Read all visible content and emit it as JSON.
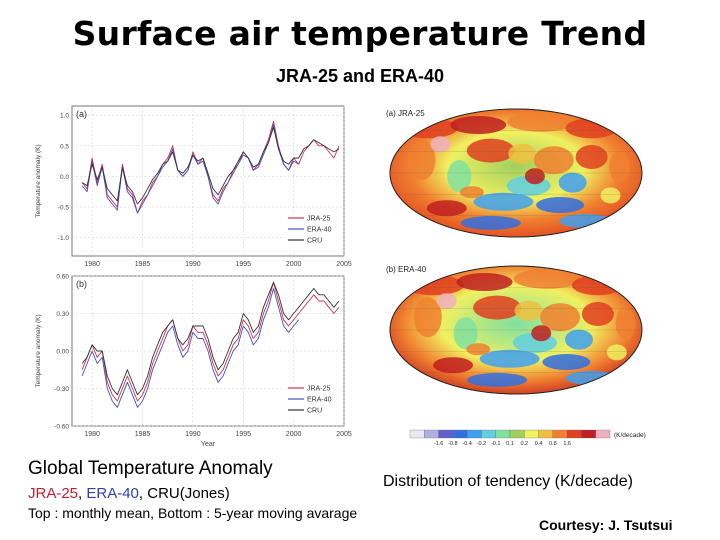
{
  "header": {
    "title": "Surface air temperature Trend",
    "subtitle": "JRA-25 and ERA-40"
  },
  "chart_data": [
    {
      "type": "line",
      "panel_label": "(a)",
      "ylabel": "Temperature anomaly (K)",
      "xlim": [
        1978,
        2005
      ],
      "ylim": [
        -1.3,
        1.15
      ],
      "xticks": [
        1980,
        1985,
        1990,
        1995,
        2000,
        2005
      ],
      "yticks": [
        "1.0",
        "0.5",
        "0.0",
        "-0.5",
        "-1.0"
      ],
      "ytick_values": [
        1.0,
        0.5,
        0.0,
        -0.5,
        -1.0
      ],
      "legend": {
        "placement": "bottom-right",
        "entries": [
          "JRA-25",
          "ERA-40",
          "CRU"
        ]
      },
      "x": [
        1979.0,
        1979.5,
        1980.0,
        1980.5,
        1981.0,
        1981.5,
        1982.0,
        1982.5,
        1983.0,
        1983.5,
        1984.0,
        1984.5,
        1985.0,
        1985.5,
        1986.0,
        1986.5,
        1987.0,
        1987.5,
        1988.0,
        1988.5,
        1989.0,
        1989.5,
        1990.0,
        1990.5,
        1991.0,
        1991.5,
        1992.0,
        1992.5,
        1993.0,
        1993.5,
        1994.0,
        1994.5,
        1995.0,
        1995.5,
        1996.0,
        1996.5,
        1997.0,
        1997.5,
        1998.0,
        1998.5,
        1999.0,
        1999.5,
        2000.0,
        2000.5,
        2001.0,
        2001.5,
        2002.0,
        2002.5,
        2003.0,
        2003.5,
        2004.0,
        2004.5
      ],
      "series": [
        {
          "name": "JRA-25",
          "color": "#d03050",
          "values": [
            -0.1,
            -0.2,
            0.3,
            -0.1,
            0.2,
            -0.3,
            -0.4,
            -0.5,
            0.2,
            -0.2,
            -0.3,
            -0.6,
            -0.4,
            -0.3,
            -0.1,
            0.0,
            0.2,
            0.3,
            0.5,
            0.1,
            0.0,
            0.1,
            0.4,
            0.2,
            0.3,
            0.0,
            -0.3,
            -0.4,
            -0.2,
            -0.1,
            0.1,
            0.2,
            0.4,
            0.3,
            0.1,
            0.2,
            0.4,
            0.6,
            0.9,
            0.5,
            0.2,
            0.1,
            0.3,
            0.2,
            0.4,
            0.5,
            0.6,
            0.5,
            0.5,
            0.4,
            0.3,
            0.5
          ]
        },
        {
          "name": "ERA-40",
          "color": "#4050c0",
          "values": [
            -0.15,
            -0.25,
            0.25,
            -0.15,
            0.15,
            -0.35,
            -0.45,
            -0.55,
            0.15,
            -0.25,
            -0.35,
            -0.6,
            -0.45,
            -0.3,
            -0.15,
            0.0,
            0.15,
            0.25,
            0.45,
            0.1,
            0.0,
            0.1,
            0.35,
            0.2,
            0.25,
            0.0,
            -0.35,
            -0.45,
            -0.25,
            -0.1,
            0.05,
            0.2,
            0.35,
            0.3,
            0.1,
            0.15,
            0.35,
            0.55,
            0.85,
            0.45,
            0.2,
            0.1,
            0.25,
            0.2,
            null,
            null,
            null,
            null,
            null,
            null,
            null,
            null
          ]
        },
        {
          "name": "CRU",
          "color": "#333333",
          "values": [
            -0.1,
            -0.15,
            0.2,
            -0.05,
            0.15,
            -0.2,
            -0.3,
            -0.4,
            0.15,
            -0.15,
            -0.25,
            -0.45,
            -0.35,
            -0.2,
            -0.05,
            0.05,
            0.2,
            0.25,
            0.4,
            0.1,
            0.05,
            0.15,
            0.35,
            0.25,
            0.3,
            0.05,
            -0.2,
            -0.3,
            -0.15,
            0.0,
            0.1,
            0.25,
            0.4,
            0.3,
            0.15,
            0.2,
            0.4,
            0.55,
            0.8,
            0.45,
            0.25,
            0.2,
            0.3,
            0.3,
            0.45,
            0.5,
            0.6,
            0.55,
            0.5,
            0.45,
            0.4,
            0.45
          ]
        }
      ]
    },
    {
      "type": "line",
      "panel_label": "(b)",
      "ylabel": "Temperature anomaly (K)",
      "xlabel": "Year",
      "xlim": [
        1978,
        2005
      ],
      "ylim": [
        -0.6,
        0.6
      ],
      "xticks": [
        1980,
        1985,
        1990,
        1995,
        2000,
        2005
      ],
      "yticks": [
        "0.60",
        "0.30",
        "0.00",
        "-0.30",
        "-0.60"
      ],
      "ytick_values": [
        0.6,
        0.3,
        0.0,
        -0.3,
        -0.6
      ],
      "legend": {
        "placement": "bottom-right",
        "entries": [
          "JRA-25",
          "ERA-40",
          "CRU"
        ]
      },
      "x": [
        1979.0,
        1979.5,
        1980.0,
        1980.5,
        1981.0,
        1981.5,
        1982.0,
        1982.5,
        1983.0,
        1983.5,
        1984.0,
        1984.5,
        1985.0,
        1985.5,
        1986.0,
        1986.5,
        1987.0,
        1987.5,
        1988.0,
        1988.5,
        1989.0,
        1989.5,
        1990.0,
        1990.5,
        1991.0,
        1991.5,
        1992.0,
        1992.5,
        1993.0,
        1993.5,
        1994.0,
        1994.5,
        1995.0,
        1995.5,
        1996.0,
        1996.5,
        1997.0,
        1997.5,
        1998.0,
        1998.5,
        1999.0,
        1999.5,
        2000.0,
        2000.5,
        2001.0,
        2001.5,
        2002.0,
        2002.5,
        2003.0,
        2003.5,
        2004.0,
        2004.5
      ],
      "series": [
        {
          "name": "JRA-25",
          "color": "#d03050",
          "values": [
            -0.15,
            -0.05,
            0.05,
            -0.05,
            0.0,
            -0.25,
            -0.35,
            -0.4,
            -0.3,
            -0.2,
            -0.3,
            -0.4,
            -0.35,
            -0.25,
            -0.1,
            0.0,
            0.1,
            0.2,
            0.25,
            0.1,
            0.0,
            0.05,
            0.2,
            0.15,
            0.15,
            0.05,
            -0.1,
            -0.2,
            -0.15,
            -0.05,
            0.05,
            0.1,
            0.25,
            0.2,
            0.1,
            0.15,
            0.3,
            0.4,
            0.55,
            0.4,
            0.25,
            0.2,
            0.25,
            0.3,
            0.35,
            0.4,
            0.45,
            0.4,
            0.4,
            0.35,
            0.3,
            0.35
          ]
        },
        {
          "name": "ERA-40",
          "color": "#4050c0",
          "values": [
            -0.2,
            -0.1,
            0.0,
            -0.1,
            -0.05,
            -0.3,
            -0.4,
            -0.45,
            -0.35,
            -0.25,
            -0.35,
            -0.45,
            -0.4,
            -0.3,
            -0.15,
            -0.05,
            0.05,
            0.15,
            0.2,
            0.05,
            -0.05,
            0.0,
            0.15,
            0.1,
            0.1,
            0.0,
            -0.15,
            -0.25,
            -0.2,
            -0.1,
            0.0,
            0.05,
            0.2,
            0.15,
            0.05,
            0.1,
            0.25,
            0.35,
            0.5,
            0.35,
            0.2,
            0.15,
            0.2,
            0.25,
            null,
            null,
            null,
            null,
            null,
            null,
            null,
            null
          ]
        },
        {
          "name": "CRU",
          "color": "#333333",
          "values": [
            -0.1,
            -0.05,
            0.05,
            0.0,
            0.0,
            -0.2,
            -0.3,
            -0.35,
            -0.25,
            -0.15,
            -0.25,
            -0.35,
            -0.3,
            -0.2,
            -0.05,
            0.05,
            0.15,
            0.2,
            0.25,
            0.1,
            0.05,
            0.1,
            0.2,
            0.2,
            0.2,
            0.1,
            -0.05,
            -0.15,
            -0.1,
            0.0,
            0.1,
            0.15,
            0.3,
            0.25,
            0.15,
            0.2,
            0.35,
            0.45,
            0.55,
            0.45,
            0.3,
            0.25,
            0.3,
            0.35,
            0.4,
            0.45,
            0.5,
            0.45,
            0.45,
            0.4,
            0.35,
            0.4
          ]
        }
      ]
    }
  ],
  "maps": [
    {
      "label": "(a) JRA-25"
    },
    {
      "label": "(b) ERA-40"
    }
  ],
  "colorbar": {
    "labels": [
      "-1.6",
      "-0.8",
      "-0.4",
      "-0.2",
      "-0.1",
      "0.1",
      "0.2",
      "0.4",
      "0.8",
      "1.6"
    ],
    "unit": "(K/decade)",
    "colors": [
      "#e8e8f0",
      "#b0b0e0",
      "#6060c8",
      "#3070e0",
      "#40a0f0",
      "#60d0e0",
      "#80e0a0",
      "#a0d060",
      "#f0f060",
      "#f0c040",
      "#f08030",
      "#e04020",
      "#c02020",
      "#f0b0c0"
    ]
  },
  "captions": {
    "left_title": "Global Temperature Anomaly",
    "datasets_jra": "JRA-25",
    "datasets_sep1": ", ",
    "datasets_era": "ERA-40",
    "datasets_rest": ", CRU(Jones)",
    "note": "Top : monthly mean, Bottom : 5-year moving avarage",
    "right_title": "Distribution of tendency (K/decade)",
    "courtesy": "Courtesy: J. Tsutsui"
  }
}
